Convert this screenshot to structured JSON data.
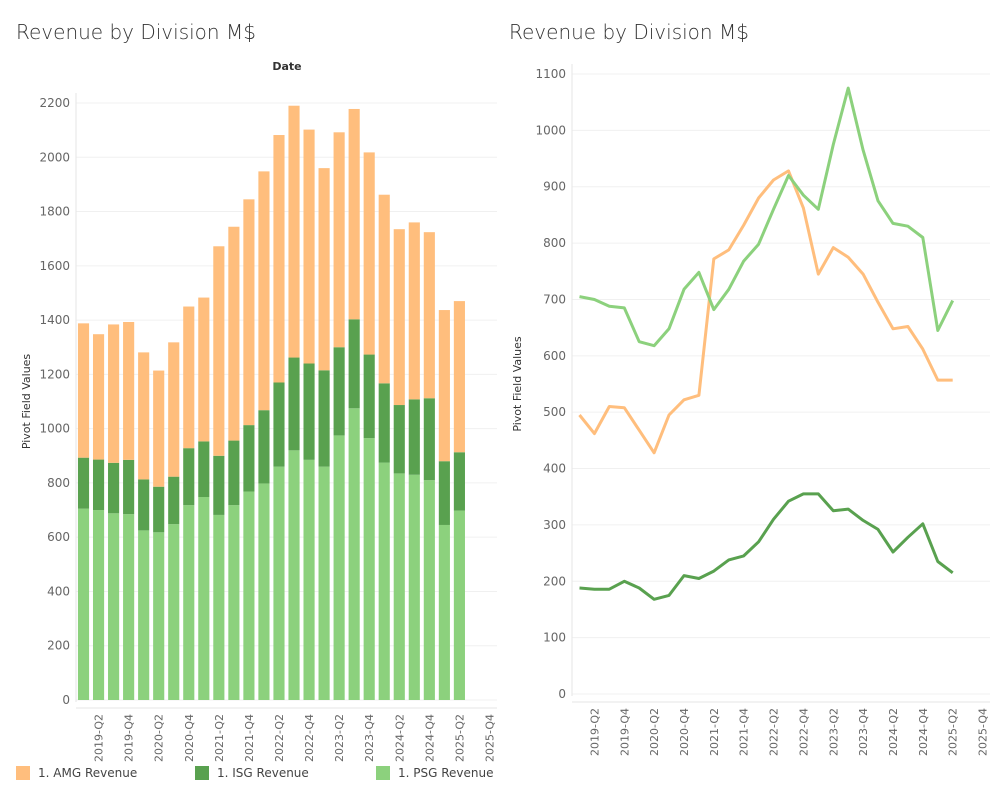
{
  "titles": {
    "left": "Revenue by Division M$",
    "right": "Revenue by Division M$"
  },
  "colors": {
    "AMG": "#ffbe7d",
    "ISG": "#59a14f",
    "PSG": "#8cd17d"
  },
  "legend": [
    {
      "key": "AMG",
      "label": "1. AMG Revenue"
    },
    {
      "key": "ISG",
      "label": "1. ISG Revenue"
    },
    {
      "key": "PSG",
      "label": "1. PSG Revenue"
    }
  ],
  "chart_data": [
    {
      "type": "bar",
      "stacked": true,
      "title": "Revenue by Division M$",
      "header": "Date",
      "xlabel": "",
      "ylabel": "Pivot Field Values",
      "ylim": [
        0,
        2200
      ],
      "yticks": [
        0,
        200,
        400,
        600,
        800,
        1000,
        1200,
        1400,
        1600,
        1800,
        2000,
        2200
      ],
      "x_axis_range": [
        "2019-Q1",
        "2025-Q4"
      ],
      "xtick_labels": [
        "2019-Q2",
        "2019-Q4",
        "2020-Q2",
        "2020-Q4",
        "2021-Q2",
        "2021-Q4",
        "2022-Q2",
        "2022-Q4",
        "2023-Q2",
        "2023-Q4",
        "2024-Q2",
        "2024-Q4",
        "2025-Q2",
        "2025-Q4"
      ],
      "stack_order": [
        "PSG",
        "ISG",
        "AMG"
      ]
    },
    {
      "type": "line",
      "title": "Revenue by Division M$",
      "xlabel": "",
      "ylabel": "Pivot Field Values",
      "ylim": [
        0,
        1100
      ],
      "yticks": [
        0,
        100,
        200,
        300,
        400,
        500,
        600,
        700,
        800,
        900,
        1000,
        1100
      ],
      "x_axis_range": [
        "2019-Q1",
        "2025-Q4"
      ],
      "xtick_labels": [
        "2019-Q2",
        "2019-Q4",
        "2020-Q2",
        "2020-Q4",
        "2021-Q2",
        "2021-Q4",
        "2022-Q2",
        "2022-Q4",
        "2023-Q2",
        "2023-Q4",
        "2024-Q2",
        "2024-Q4",
        "2025-Q2",
        "2025-Q4"
      ]
    }
  ],
  "series_data": {
    "categories": [
      "2019-Q1",
      "2019-Q2",
      "2019-Q3",
      "2019-Q4",
      "2020-Q1",
      "2020-Q2",
      "2020-Q3",
      "2020-Q4",
      "2021-Q1",
      "2021-Q2",
      "2021-Q3",
      "2021-Q4",
      "2022-Q1",
      "2022-Q2",
      "2022-Q3",
      "2022-Q4",
      "2023-Q1",
      "2023-Q2",
      "2023-Q3",
      "2023-Q4",
      "2024-Q1",
      "2024-Q2",
      "2024-Q3",
      "2024-Q4",
      "2025-Q1",
      "2025-Q2"
    ],
    "series": [
      {
        "key": "AMG",
        "name": "1. AMG Revenue",
        "values": [
          495,
          462,
          510,
          508,
          468,
          428,
          495,
          522,
          530,
          772,
          788,
          832,
          880,
          912,
          928,
          862,
          745,
          792,
          775,
          745,
          695,
          648,
          652,
          612,
          557,
          557
        ]
      },
      {
        "key": "ISG",
        "name": "1. ISG Revenue",
        "values": [
          188,
          186,
          186,
          200,
          188,
          168,
          175,
          210,
          205,
          218,
          238,
          245,
          270,
          310,
          342,
          355,
          355,
          325,
          328,
          308,
          292,
          252,
          278,
          302,
          235,
          215
        ]
      },
      {
        "key": "PSG",
        "name": "1. PSG Revenue",
        "values": [
          705,
          700,
          688,
          685,
          625,
          618,
          648,
          718,
          748,
          682,
          718,
          768,
          798,
          860,
          920,
          885,
          860,
          975,
          1075,
          965,
          875,
          835,
          830,
          810,
          645,
          698
        ]
      }
    ]
  }
}
